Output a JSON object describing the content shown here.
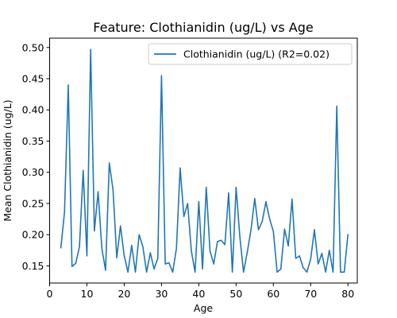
{
  "chart_data": {
    "type": "line",
    "title": "Feature: Clothianidin (ug/L) vs Age",
    "xlabel": "Age",
    "ylabel": "Mean Clothianidin (ug/L)",
    "xlim": [
      0,
      82.5
    ],
    "ylim": [
      0.1225,
      0.515
    ],
    "xticks": [
      0,
      10,
      20,
      30,
      40,
      50,
      60,
      70,
      80
    ],
    "yticks": [
      0.15,
      0.2,
      0.25,
      0.3,
      0.35,
      0.4,
      0.45,
      0.5
    ],
    "ytick_labels": [
      "0.15",
      "0.20",
      "0.25",
      "0.30",
      "0.35",
      "0.40",
      "0.45",
      "0.50"
    ],
    "grid": false,
    "legend_position": "top-right",
    "series": [
      {
        "name": "Clothianidin (ug/L) (R2=0.02)",
        "color": "#1f77b4",
        "x": [
          3,
          4,
          5,
          6,
          7,
          8,
          9,
          10,
          11,
          12,
          13,
          14,
          15,
          16,
          17,
          18,
          19,
          20,
          21,
          22,
          23,
          24,
          25,
          26,
          27,
          28,
          29,
          30,
          31,
          32,
          33,
          34,
          35,
          36,
          37,
          38,
          39,
          40,
          41,
          42,
          43,
          44,
          45,
          46,
          47,
          48,
          49,
          50,
          51,
          52,
          53,
          54,
          55,
          56,
          57,
          58,
          59,
          60,
          61,
          62,
          63,
          64,
          65,
          66,
          67,
          68,
          69,
          70,
          71,
          72,
          73,
          74,
          75,
          76,
          77,
          78,
          79,
          80
        ],
        "y": [
          0.178,
          0.237,
          0.44,
          0.149,
          0.154,
          0.181,
          0.303,
          0.166,
          0.497,
          0.206,
          0.269,
          0.178,
          0.143,
          0.315,
          0.272,
          0.163,
          0.214,
          0.166,
          0.14,
          0.183,
          0.14,
          0.2,
          0.181,
          0.14,
          0.171,
          0.145,
          0.162,
          0.455,
          0.153,
          0.155,
          0.14,
          0.178,
          0.307,
          0.229,
          0.25,
          0.174,
          0.14,
          0.253,
          0.145,
          0.276,
          0.174,
          0.153,
          0.189,
          0.191,
          0.184,
          0.267,
          0.14,
          0.276,
          0.197,
          0.14,
          0.172,
          0.208,
          0.258,
          0.208,
          0.221,
          0.253,
          0.225,
          0.205,
          0.14,
          0.145,
          0.209,
          0.182,
          0.257,
          0.162,
          0.166,
          0.147,
          0.14,
          0.161,
          0.208,
          0.153,
          0.17,
          0.14,
          0.175,
          0.14,
          0.406,
          0.14,
          0.14,
          0.201
        ]
      }
    ]
  }
}
